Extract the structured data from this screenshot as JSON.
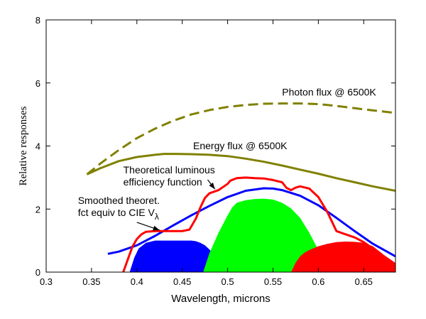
{
  "chart_data": {
    "type": "line",
    "xlabel": "Wavelength, microns",
    "ylabel": "Relative responses",
    "xlim": [
      0.3,
      0.685
    ],
    "ylim": [
      0,
      8
    ],
    "x_ticks": [
      0.3,
      0.35,
      0.4,
      0.45,
      0.5,
      0.55,
      0.6,
      0.65
    ],
    "x_tick_labels": [
      "0.3",
      "0.35",
      "0.4",
      "0.45",
      "0.5",
      "0.55",
      "0.6",
      "0.65"
    ],
    "y_ticks": [
      0,
      2,
      4,
      6,
      8
    ],
    "y_tick_labels": [
      "0",
      "2",
      "4",
      "6",
      "8"
    ],
    "grid": false,
    "legend": "none",
    "areas": [
      {
        "color": "#0000ff",
        "x": [
          0.392,
          0.397,
          0.402,
          0.41,
          0.42,
          0.43,
          0.44,
          0.45,
          0.46,
          0.465,
          0.47,
          0.475,
          0.48,
          0.485,
          0.49,
          0.495,
          0.5,
          0.502
        ],
        "y": [
          0.0,
          0.45,
          0.75,
          0.93,
          1.0,
          1.0,
          1.0,
          1.0,
          1.0,
          0.98,
          0.93,
          0.85,
          0.72,
          0.55,
          0.38,
          0.2,
          0.06,
          0.0
        ]
      },
      {
        "color": "#00ff00",
        "x": [
          0.473,
          0.48,
          0.49,
          0.5,
          0.505,
          0.51,
          0.52,
          0.53,
          0.54,
          0.55,
          0.56,
          0.57,
          0.58,
          0.59,
          0.6,
          0.605,
          0.61
        ],
        "y": [
          0.0,
          0.6,
          1.25,
          1.8,
          2.05,
          2.2,
          2.28,
          2.32,
          2.33,
          2.3,
          2.2,
          2.02,
          1.72,
          1.25,
          0.7,
          0.38,
          0.0
        ]
      },
      {
        "color": "#ff0000",
        "x": [
          0.57,
          0.575,
          0.58,
          0.585,
          0.59,
          0.6,
          0.61,
          0.62,
          0.63,
          0.64,
          0.65,
          0.66,
          0.67,
          0.68,
          0.685
        ],
        "y": [
          0.0,
          0.3,
          0.5,
          0.62,
          0.7,
          0.82,
          0.9,
          0.95,
          0.97,
          0.96,
          0.93,
          0.82,
          0.6,
          0.32,
          0.22
        ]
      }
    ],
    "series": [
      {
        "color": "#808000",
        "dashed": true,
        "x": [
          0.345,
          0.36,
          0.38,
          0.4,
          0.42,
          0.44,
          0.46,
          0.48,
          0.5,
          0.52,
          0.54,
          0.56,
          0.58,
          0.6,
          0.62,
          0.64,
          0.66,
          0.685
        ],
        "y": [
          3.1,
          3.45,
          3.87,
          4.25,
          4.55,
          4.8,
          5.0,
          5.14,
          5.24,
          5.3,
          5.34,
          5.35,
          5.35,
          5.33,
          5.27,
          5.2,
          5.13,
          5.05
        ]
      },
      {
        "color": "#808000",
        "dashed": false,
        "x": [
          0.345,
          0.36,
          0.38,
          0.4,
          0.42,
          0.43,
          0.44,
          0.46,
          0.48,
          0.5,
          0.52,
          0.54,
          0.56,
          0.58,
          0.6,
          0.62,
          0.64,
          0.66,
          0.685
        ],
        "y": [
          3.1,
          3.3,
          3.52,
          3.65,
          3.72,
          3.75,
          3.75,
          3.74,
          3.72,
          3.68,
          3.6,
          3.5,
          3.38,
          3.25,
          3.12,
          2.98,
          2.85,
          2.72,
          2.58
        ]
      },
      {
        "color": "#0000ff",
        "dashed": false,
        "x": [
          0.368,
          0.38,
          0.4,
          0.42,
          0.44,
          0.46,
          0.48,
          0.5,
          0.52,
          0.54,
          0.55,
          0.56,
          0.58,
          0.6,
          0.62,
          0.64,
          0.66,
          0.685
        ],
        "y": [
          0.58,
          0.65,
          0.85,
          1.15,
          1.48,
          1.8,
          2.1,
          2.38,
          2.58,
          2.66,
          2.65,
          2.6,
          2.42,
          2.12,
          1.72,
          1.3,
          0.9,
          0.5
        ]
      },
      {
        "color": "#ff0000",
        "dashed": false,
        "x": [
          0.385,
          0.39,
          0.395,
          0.4,
          0.405,
          0.41,
          0.42,
          0.43,
          0.44,
          0.45,
          0.458,
          0.465,
          0.47,
          0.475,
          0.48,
          0.49,
          0.495,
          0.5,
          0.503,
          0.51,
          0.52,
          0.53,
          0.54,
          0.55,
          0.56,
          0.565,
          0.57,
          0.575,
          0.58,
          0.59,
          0.6,
          0.61,
          0.62,
          0.63,
          0.64,
          0.65,
          0.66,
          0.67,
          0.68,
          0.685
        ],
        "y": [
          0.0,
          0.4,
          0.8,
          1.05,
          1.2,
          1.28,
          1.3,
          1.3,
          1.3,
          1.3,
          1.35,
          1.7,
          2.05,
          2.35,
          2.5,
          2.6,
          2.7,
          2.8,
          2.9,
          2.98,
          3.0,
          2.98,
          2.97,
          2.92,
          2.85,
          2.67,
          2.6,
          2.68,
          2.72,
          2.65,
          2.38,
          1.9,
          1.3,
          1.2,
          1.1,
          0.95,
          0.75,
          0.55,
          0.35,
          0.25
        ]
      }
    ],
    "annotations": [
      {
        "lines": [
          "Photon flux @ 6500K"
        ],
        "pos_x": 0.56,
        "pos_y": 5.6,
        "anchor": "start"
      },
      {
        "lines": [
          "Energy flux @ 6500K"
        ],
        "pos_x": 0.462,
        "pos_y": 3.9,
        "anchor": "start"
      },
      {
        "lines": [
          "Theoretical luminous",
          "efficiency function"
        ],
        "pos_x": 0.385,
        "pos_y": 3.13,
        "anchor": "start"
      },
      {
        "lines": [
          "Smoothed theoret.",
          "fct equiv to CIE V"
        ],
        "subscript": "λ",
        "pos_x": 0.335,
        "pos_y": 2.16,
        "anchor": "start"
      }
    ],
    "arrows": [
      {
        "from": [
          0.478,
          2.93
        ],
        "to": [
          0.486,
          2.63
        ]
      },
      {
        "from": [
          0.4,
          1.58
        ],
        "to": [
          0.425,
          1.33
        ]
      }
    ]
  }
}
